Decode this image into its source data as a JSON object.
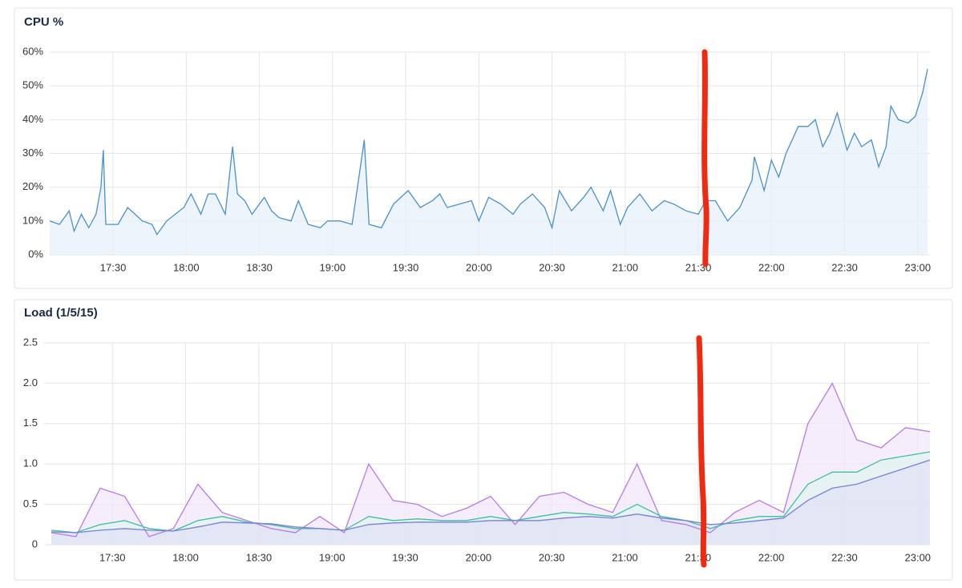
{
  "chart_data": [
    {
      "type": "area",
      "title": "CPU %",
      "x": [
        1024,
        1028,
        1032,
        1034,
        1037,
        1040,
        1043,
        1045,
        1046,
        1047,
        1052,
        1056,
        1059,
        1062,
        1066,
        1068,
        1072,
        1079,
        1082,
        1086,
        1089,
        1092,
        1096,
        1099,
        1101,
        1104,
        1107,
        1112,
        1115,
        1118,
        1123,
        1126,
        1130,
        1135,
        1138,
        1143,
        1148,
        1153,
        1155,
        1160,
        1165,
        1171,
        1176,
        1181,
        1184,
        1187,
        1192,
        1197,
        1200,
        1204,
        1209,
        1214,
        1217,
        1222,
        1227,
        1230,
        1233,
        1238,
        1243,
        1246,
        1251,
        1254,
        1258,
        1261,
        1266,
        1271,
        1276,
        1280,
        1285,
        1290,
        1293,
        1297,
        1302,
        1307,
        1312,
        1313,
        1317,
        1320,
        1323,
        1326,
        1331,
        1335,
        1338,
        1341,
        1344,
        1347,
        1351,
        1354,
        1357,
        1361,
        1364,
        1367,
        1369,
        1372,
        1376,
        1379,
        1382,
        1384
      ],
      "series": [
        {
          "color": "#4a90c9",
          "fill": "#e6f0fb",
          "values": [
            10,
            9,
            13,
            7,
            12,
            8,
            12,
            20,
            31,
            9,
            9,
            14,
            12,
            10,
            9,
            6,
            10,
            14,
            18,
            12,
            18,
            18,
            12,
            32,
            18,
            16,
            12,
            17,
            13,
            11,
            10,
            16,
            9,
            8,
            10,
            10,
            9,
            34,
            9,
            8,
            15,
            19,
            14,
            16,
            18,
            14,
            15,
            16,
            10,
            17,
            15,
            12,
            15,
            18,
            14,
            8,
            19,
            13,
            17,
            20,
            13,
            19,
            9,
            14,
            18,
            13,
            16,
            15,
            13,
            12,
            16,
            16,
            10,
            14,
            22,
            29,
            19,
            28,
            23,
            30,
            38,
            38,
            40,
            32,
            36,
            42,
            31,
            36,
            32,
            34,
            26,
            32,
            44,
            40,
            39,
            41,
            48,
            55
          ]
        }
      ],
      "xlim": [
        1024,
        1385
      ],
      "xticks": [
        {
          "value": 1050,
          "label": "17:30"
        },
        {
          "value": 1080,
          "label": "18:00"
        },
        {
          "value": 1110,
          "label": "18:30"
        },
        {
          "value": 1140,
          "label": "19:00"
        },
        {
          "value": 1170,
          "label": "19:30"
        },
        {
          "value": 1200,
          "label": "20:00"
        },
        {
          "value": 1230,
          "label": "20:30"
        },
        {
          "value": 1260,
          "label": "21:00"
        },
        {
          "value": 1290,
          "label": "21:30"
        },
        {
          "value": 1320,
          "label": "22:00"
        },
        {
          "value": 1350,
          "label": "22:30"
        },
        {
          "value": 1380,
          "label": "23:00"
        }
      ],
      "ylim": [
        0,
        60
      ],
      "yticks": [
        {
          "value": 0,
          "label": "0%"
        },
        {
          "value": 10,
          "label": "10%"
        },
        {
          "value": 20,
          "label": "20%"
        },
        {
          "value": 30,
          "label": "30%"
        },
        {
          "value": 40,
          "label": "40%"
        },
        {
          "value": 50,
          "label": "50%"
        },
        {
          "value": 60,
          "label": "60%"
        }
      ],
      "grid": true
    },
    {
      "type": "area",
      "title": "Load (1/5/15)",
      "x": [
        1025,
        1035,
        1045,
        1055,
        1065,
        1075,
        1085,
        1095,
        1105,
        1115,
        1125,
        1135,
        1145,
        1155,
        1165,
        1175,
        1185,
        1195,
        1205,
        1215,
        1225,
        1235,
        1245,
        1255,
        1265,
        1275,
        1285,
        1295,
        1305,
        1315,
        1325,
        1335,
        1345,
        1355,
        1365,
        1375,
        1385
      ],
      "series": [
        {
          "color": "#b57be6",
          "fill": "#f1e6fb",
          "values": [
            0.15,
            0.1,
            0.7,
            0.6,
            0.1,
            0.2,
            0.75,
            0.4,
            0.3,
            0.2,
            0.15,
            0.35,
            0.15,
            1.0,
            0.55,
            0.5,
            0.35,
            0.45,
            0.6,
            0.25,
            0.6,
            0.65,
            0.5,
            0.4,
            1.0,
            0.3,
            0.25,
            0.15,
            0.4,
            0.55,
            0.4,
            1.5,
            2.0,
            1.3,
            1.2,
            1.45,
            1.4
          ]
        },
        {
          "color": "#3fbf9f",
          "fill": "#e0f5ee",
          "values": [
            0.18,
            0.15,
            0.25,
            0.3,
            0.2,
            0.17,
            0.3,
            0.35,
            0.28,
            0.25,
            0.2,
            0.2,
            0.18,
            0.35,
            0.3,
            0.32,
            0.3,
            0.3,
            0.35,
            0.3,
            0.35,
            0.4,
            0.38,
            0.35,
            0.5,
            0.35,
            0.3,
            0.2,
            0.3,
            0.35,
            0.35,
            0.75,
            0.9,
            0.9,
            1.05,
            1.1,
            1.15
          ]
        },
        {
          "color": "#7b7fdc",
          "fill": "#dfe0f7",
          "values": [
            0.16,
            0.15,
            0.18,
            0.2,
            0.18,
            0.17,
            0.22,
            0.28,
            0.27,
            0.26,
            0.22,
            0.2,
            0.18,
            0.25,
            0.27,
            0.28,
            0.28,
            0.28,
            0.3,
            0.3,
            0.3,
            0.33,
            0.35,
            0.33,
            0.38,
            0.33,
            0.3,
            0.25,
            0.27,
            0.3,
            0.33,
            0.55,
            0.7,
            0.75,
            0.85,
            0.95,
            1.05
          ]
        }
      ],
      "xlim": [
        1022,
        1385
      ],
      "xticks": [
        {
          "value": 1050,
          "label": "17:30"
        },
        {
          "value": 1080,
          "label": "18:00"
        },
        {
          "value": 1110,
          "label": "18:30"
        },
        {
          "value": 1140,
          "label": "19:00"
        },
        {
          "value": 1170,
          "label": "19:30"
        },
        {
          "value": 1200,
          "label": "20:00"
        },
        {
          "value": 1230,
          "label": "20:30"
        },
        {
          "value": 1260,
          "label": "21:00"
        },
        {
          "value": 1290,
          "label": "21:30"
        },
        {
          "value": 1320,
          "label": "22:00"
        },
        {
          "value": 1350,
          "label": "22:30"
        },
        {
          "value": 1380,
          "label": "23:00"
        }
      ],
      "ylim": [
        0,
        2.5
      ],
      "yticks": [
        0,
        0.5,
        {
          "value": 1,
          "label": "1.0"
        },
        1.5,
        {
          "value": 2,
          "label": "2.0"
        },
        2.5
      ],
      "grid": true
    }
  ]
}
